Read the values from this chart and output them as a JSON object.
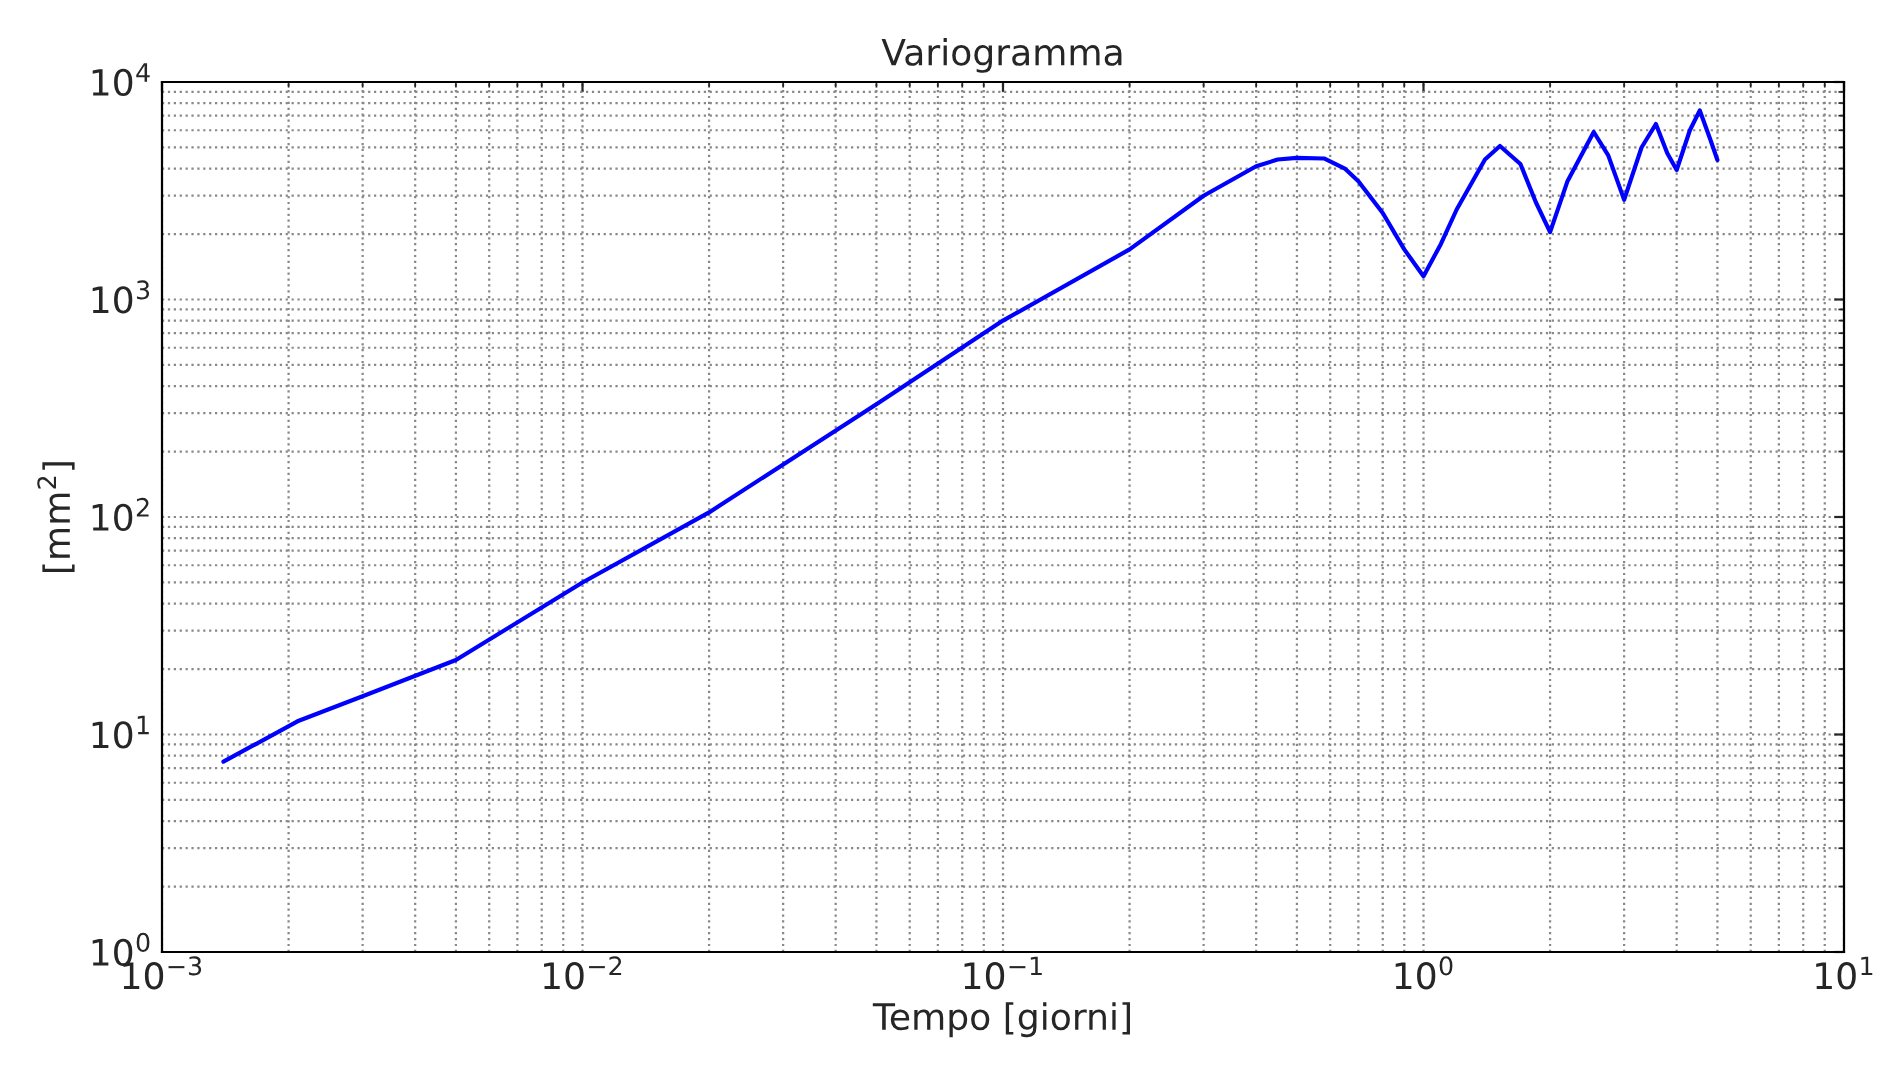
{
  "chart_data": {
    "type": "line",
    "title": "Variogramma",
    "xlabel": "Tempo [giorni]",
    "ylabel": "[mm$^{2}$]",
    "log": "xy",
    "grid": true,
    "marker": "none",
    "line_style": "solid",
    "xlim": [
      0.001,
      10
    ],
    "ylim": [
      1,
      10000
    ],
    "xticks": [
      {
        "value": 0.001,
        "label": "10$^{−3}$"
      },
      {
        "value": 0.01,
        "label": "10$^{−2}$"
      },
      {
        "value": 0.1,
        "label": "10$^{−1}$"
      },
      {
        "value": 1,
        "label": "10$^{0}$"
      },
      {
        "value": 10,
        "label": "10$^{1}$"
      }
    ],
    "yticks": [
      {
        "value": 1,
        "label": "10$^{0}$"
      },
      {
        "value": 10,
        "label": "10$^{1}$"
      },
      {
        "value": 100,
        "label": "10$^{2}$"
      },
      {
        "value": 1000,
        "label": "10$^{3}$"
      },
      {
        "value": 10000,
        "label": "10$^{4}$"
      }
    ],
    "series": [
      {
        "color": "#0000ff",
        "x": [
          0.0014,
          0.0021,
          0.003,
          0.005,
          0.01,
          0.02,
          0.05,
          0.1,
          0.2,
          0.3,
          0.4,
          0.45,
          0.5,
          0.58,
          0.65,
          0.7,
          0.8,
          0.9,
          1.0,
          1.1,
          1.2,
          1.4,
          1.52,
          1.7,
          1.85,
          2.0,
          2.2,
          2.54,
          2.75,
          3.0,
          3.3,
          3.57,
          3.8,
          4.0,
          4.3,
          4.54,
          4.8,
          5.0
        ],
        "values": [
          7.5,
          11.5,
          15,
          22,
          50,
          105,
          330,
          800,
          1700,
          3000,
          4100,
          4400,
          4480,
          4450,
          4000,
          3500,
          2500,
          1700,
          1280,
          1800,
          2600,
          4400,
          5080,
          4200,
          2800,
          2040,
          3500,
          5890,
          4600,
          2870,
          5000,
          6410,
          4700,
          3940,
          6000,
          7400,
          5500,
          4380
        ]
      }
    ]
  }
}
